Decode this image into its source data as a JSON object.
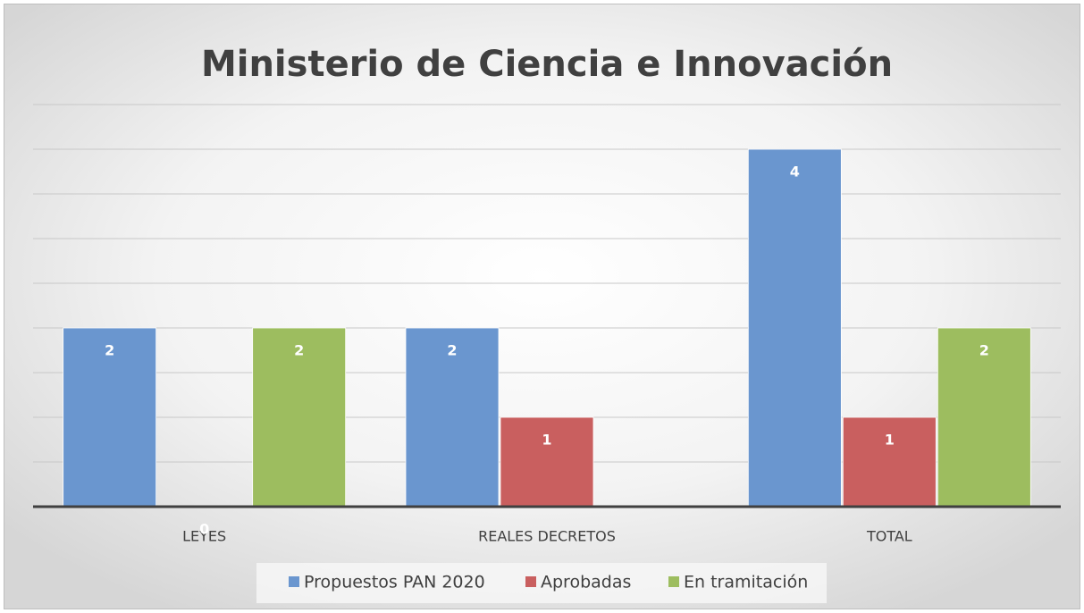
{
  "chart_data": {
    "type": "bar",
    "title": "Ministerio de Ciencia e Innovación",
    "categories": [
      "LEYES",
      "REALES DECRETOS",
      "TOTAL"
    ],
    "series": [
      {
        "name": "Propuestos PAN 2020",
        "color": "#6a96cf",
        "values": [
          2,
          2,
          4
        ]
      },
      {
        "name": "Aprobadas",
        "color": "#c95f5f",
        "values": [
          0,
          1,
          1
        ]
      },
      {
        "name": "En tramitación",
        "color": "#9dbd5f",
        "values": [
          2,
          null,
          2
        ]
      }
    ],
    "ylim": [
      0,
      4.5
    ],
    "yticks": [
      0,
      0.5,
      1,
      1.5,
      2,
      2.5,
      3,
      3.5,
      4,
      4.5
    ],
    "grid": true,
    "legend": "bottom"
  }
}
